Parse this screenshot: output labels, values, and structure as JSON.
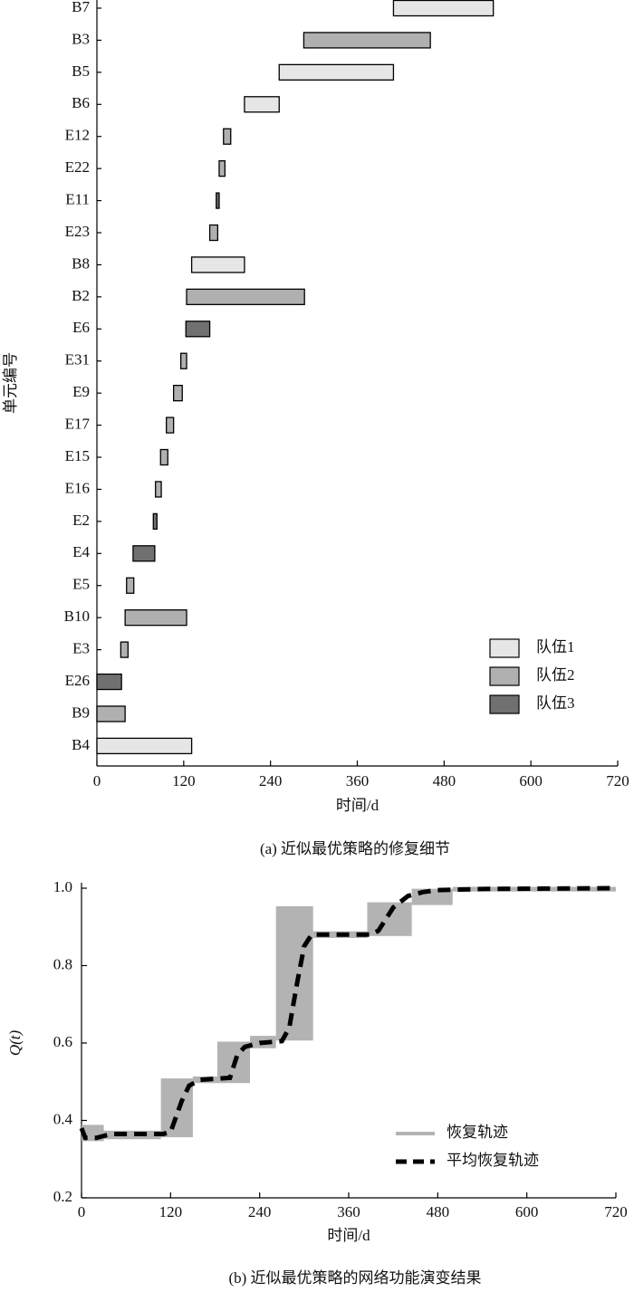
{
  "chart_data": [
    {
      "type": "gantt",
      "caption": "(a)  近似最优策略的修复细节",
      "xlabel": "时间/d",
      "ylabel": "单元编号",
      "categories": [
        "B7",
        "B3",
        "B5",
        "B6",
        "E12",
        "E22",
        "E11",
        "E23",
        "B8",
        "B2",
        "E6",
        "E31",
        "E9",
        "E17",
        "E15",
        "E16",
        "E2",
        "E4",
        "E5",
        "B10",
        "E3",
        "E26",
        "B9",
        "B4"
      ],
      "xlim": [
        0,
        720
      ],
      "xticks": [
        0,
        120,
        240,
        360,
        480,
        600,
        720
      ],
      "legend": "lower right",
      "series": [
        {
          "name": "队伍1",
          "color": "#e6e6e6",
          "start": [
            410,
            null,
            252,
            204,
            null,
            null,
            null,
            null,
            131,
            null,
            null,
            null,
            null,
            null,
            null,
            null,
            null,
            null,
            null,
            null,
            null,
            null,
            null,
            0
          ],
          "end": [
            548,
            null,
            410,
            252,
            null,
            null,
            null,
            null,
            204,
            null,
            null,
            null,
            null,
            null,
            null,
            null,
            null,
            null,
            null,
            null,
            null,
            null,
            null,
            131
          ]
        },
        {
          "name": "队伍2",
          "color": "#b0b0b0",
          "start": [
            null,
            286,
            null,
            null,
            175,
            169,
            null,
            156,
            null,
            124,
            null,
            116,
            106,
            96,
            88,
            81,
            null,
            null,
            41,
            39,
            33,
            null,
            0,
            null
          ],
          "end": [
            null,
            461,
            null,
            null,
            185,
            177,
            null,
            167,
            null,
            287,
            null,
            124,
            118,
            106,
            98,
            89,
            null,
            null,
            51,
            124,
            43,
            null,
            39,
            null
          ]
        },
        {
          "name": "队伍3",
          "color": "#707070",
          "start": [
            null,
            null,
            null,
            null,
            null,
            null,
            165,
            null,
            null,
            null,
            123,
            null,
            null,
            null,
            null,
            null,
            78,
            50,
            null,
            null,
            null,
            0,
            null,
            null
          ],
          "end": [
            null,
            null,
            null,
            null,
            null,
            null,
            169,
            null,
            null,
            null,
            156,
            null,
            null,
            null,
            null,
            null,
            83,
            80,
            null,
            null,
            null,
            34,
            null,
            null
          ]
        }
      ]
    },
    {
      "type": "line",
      "caption": "(b)  近似最优策略的网络功能演变结果",
      "xlabel": "时间/d",
      "ylabel": "Q(t)",
      "xlim": [
        0,
        720
      ],
      "xticks": [
        0,
        120,
        240,
        360,
        480,
        600,
        720
      ],
      "ylim": [
        0.2,
        1
      ],
      "yticks": [
        0.2,
        0.4,
        0.6,
        0.8,
        {
          "value": 1,
          "label": "1.0"
        }
      ],
      "legend": "lower right",
      "series": [
        {
          "name": "恢复轨迹",
          "style": "band",
          "color": "#b3b3b3",
          "x": [
            0,
            30,
            107,
            150,
            183,
            227,
            262,
            312,
            385,
            445,
            500
          ],
          "low": [
            0.35,
            0.355,
            0.36,
            0.5,
            0.5,
            0.59,
            0.61,
            0.875,
            0.88,
            0.96,
            0.995
          ],
          "high": [
            0.385,
            0.37,
            0.505,
            0.51,
            0.6,
            0.615,
            0.95,
            0.885,
            0.96,
            0.995,
            1.0
          ]
        },
        {
          "name": "平均恢复轨迹",
          "style": "dashed",
          "color": "#000000",
          "x": [
            0,
            5,
            20,
            40,
            110,
            120,
            135,
            145,
            160,
            200,
            210,
            220,
            240,
            270,
            280,
            290,
            300,
            310,
            390,
            400,
            420,
            440,
            460,
            480,
            540,
            720
          ],
          "values": [
            0.38,
            0.355,
            0.355,
            0.365,
            0.365,
            0.37,
            0.45,
            0.49,
            0.505,
            0.51,
            0.57,
            0.59,
            0.6,
            0.605,
            0.64,
            0.75,
            0.85,
            0.88,
            0.88,
            0.89,
            0.95,
            0.98,
            0.99,
            0.995,
            0.998,
            1.0
          ]
        }
      ]
    }
  ]
}
